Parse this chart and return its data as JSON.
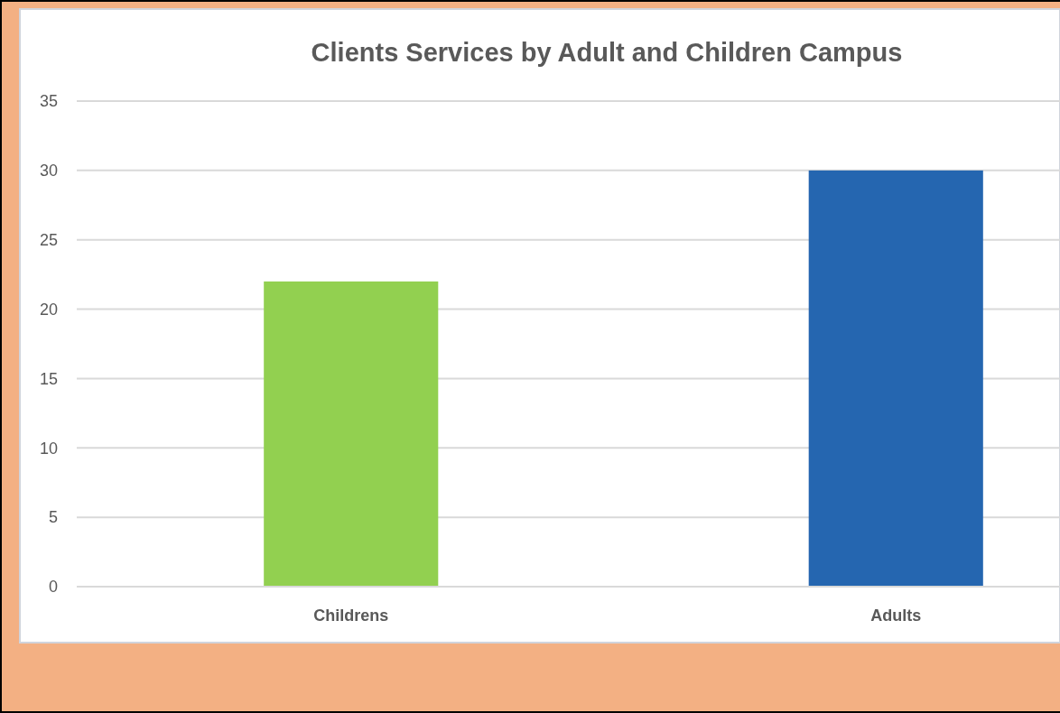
{
  "chart_data": {
    "type": "bar",
    "title": "Clients Services by Adult and Children Campus",
    "categories": [
      "Childrens",
      "Adults"
    ],
    "values": [
      22,
      30
    ],
    "colors": [
      "#92d050",
      "#2566b0"
    ],
    "ylim": [
      0,
      35
    ],
    "yticks": [
      0,
      5,
      10,
      15,
      20,
      25,
      30,
      35
    ],
    "grid": "y"
  }
}
